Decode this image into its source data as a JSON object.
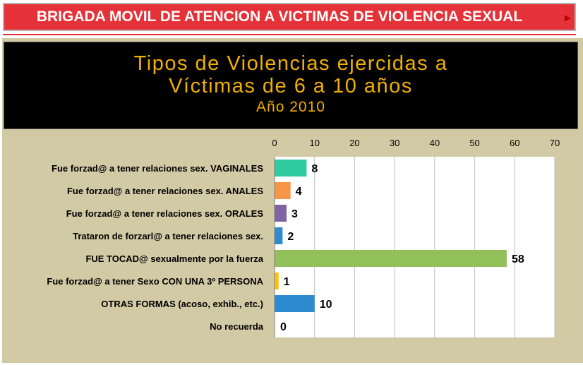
{
  "header": {
    "banner_title": "BRIGADA MOVIL DE ATENCION A VICTIMAS DE VIOLENCIA SEXUAL",
    "arrow_icon": "arrow-right-icon",
    "banner_color": "#e53238"
  },
  "chart_title": {
    "line1": "Tipos de Violencias ejercidas a",
    "line2": "Víctimas de 6 a 10 años",
    "line3": "Año 2010"
  },
  "chart_data": {
    "type": "bar",
    "orientation": "horizontal",
    "categories": [
      "Fue forzad@ a tener relaciones sex. VAGINALES",
      "Fue forzad@ a tener relaciones sex. ANALES",
      "Fue forzad@ a tener relaciones sex. ORALES",
      "Trataron de forzarl@ a tener relaciones sex.",
      "FUE TOCAD@ sexualmente por la fuerza",
      "Fue forzad@ a tener Sexo CON UNA 3º PERSONA",
      "OTRAS FORMAS (acoso, exhib., etc.)",
      "No recuerda"
    ],
    "values": [
      8,
      4,
      3,
      2,
      58,
      1,
      10,
      0
    ],
    "colors": [
      "#2ecaa0",
      "#f79646",
      "#8064a2",
      "#2e8bd0",
      "#92c05a",
      "#ffc000",
      "#2e8bd0",
      "#2e8bd0"
    ],
    "x_ticks": [
      "0",
      "10",
      "20",
      "30",
      "40",
      "50",
      "60",
      "70"
    ],
    "xlim": [
      0,
      70
    ],
    "axis_position": "top",
    "grid": true
  }
}
